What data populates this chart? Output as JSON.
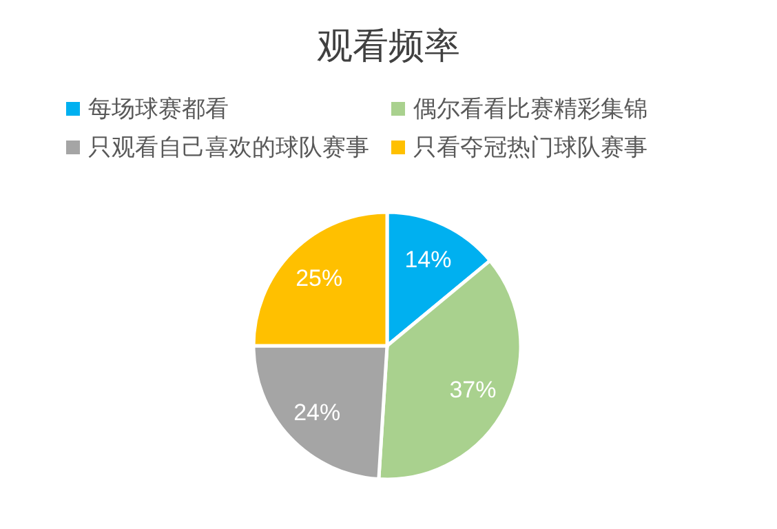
{
  "chart_data": {
    "type": "pie",
    "title": "观看频率",
    "categories": [
      "每场球赛都看",
      "偶尔看看比赛精彩集锦",
      "只观看自己喜欢的球队赛事",
      "只看夺冠热门球队赛事"
    ],
    "values": [
      14,
      37,
      24,
      25
    ],
    "colors": [
      "#00b0f0",
      "#a9d18e",
      "#a5a5a5",
      "#ffc000"
    ],
    "value_labels": [
      "14%",
      "37%",
      "24%",
      "25%"
    ],
    "legend": "top"
  }
}
